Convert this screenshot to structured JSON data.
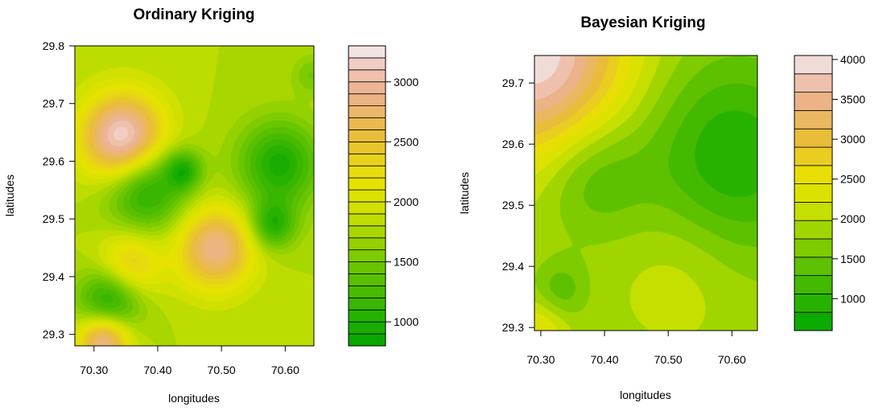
{
  "figures": [
    {
      "title": "Ordinary Kriging",
      "xlabel": "longitudes",
      "ylabel": "latitudes",
      "x_ticks": [
        "70.30",
        "70.40",
        "70.50",
        "70.60"
      ],
      "y_ticks": [
        "29.3",
        "29.4",
        "29.5",
        "29.6",
        "29.7",
        "29.8"
      ],
      "legend_ticks": [
        "1000",
        "1500",
        "2000",
        "2500",
        "3000"
      ]
    },
    {
      "title": "Bayesian Kriging",
      "xlabel": "longitudes",
      "ylabel": "latitudes",
      "x_ticks": [
        "70.30",
        "70.40",
        "70.50",
        "70.60"
      ],
      "y_ticks": [
        "29.3",
        "29.4",
        "29.5",
        "29.6",
        "29.7"
      ],
      "legend_ticks": [
        "1000",
        "1500",
        "2000",
        "2500",
        "3000",
        "3500",
        "4000"
      ]
    }
  ],
  "chart_data": [
    {
      "type": "heatmap",
      "title": "Ordinary Kriging",
      "xlabel": "longitudes",
      "ylabel": "latitudes",
      "xlim": [
        70.27,
        70.645
      ],
      "ylim": [
        29.28,
        29.8
      ],
      "x_ticks": [
        70.3,
        70.4,
        70.5,
        70.6
      ],
      "y_ticks": [
        29.3,
        29.4,
        29.5,
        29.6,
        29.7,
        29.8
      ],
      "colorbar": {
        "min": 800,
        "max": 3300,
        "levels": 25,
        "ticks": [
          1000,
          1500,
          2000,
          2500,
          3000
        ]
      },
      "base_value": 1800,
      "features": [
        {
          "x": 70.345,
          "y": 29.64,
          "value": 3300,
          "radius": 0.045
        },
        {
          "x": 70.49,
          "y": 29.45,
          "value": 2900,
          "radius": 0.042
        },
        {
          "x": 70.315,
          "y": 29.29,
          "value": 3000,
          "radius": 0.028
        },
        {
          "x": 70.355,
          "y": 29.42,
          "value": 2500,
          "radius": 0.035
        },
        {
          "x": 70.38,
          "y": 29.555,
          "value": 900,
          "radius": 0.045
        },
        {
          "x": 70.44,
          "y": 29.585,
          "value": 1100,
          "radius": 0.02
        },
        {
          "x": 70.325,
          "y": 29.36,
          "value": 900,
          "radius": 0.035
        },
        {
          "x": 70.59,
          "y": 29.595,
          "value": 950,
          "radius": 0.045
        },
        {
          "x": 70.58,
          "y": 29.49,
          "value": 1050,
          "radius": 0.025
        },
        {
          "x": 70.64,
          "y": 29.75,
          "value": 1500,
          "radius": 0.02
        }
      ]
    },
    {
      "type": "heatmap",
      "title": "Bayesian Kriging",
      "xlabel": "longitudes",
      "ylabel": "latitudes",
      "xlim": [
        70.29,
        70.64
      ],
      "ylim": [
        29.295,
        29.745
      ],
      "x_ticks": [
        70.3,
        70.4,
        70.5,
        70.6
      ],
      "y_ticks": [
        29.3,
        29.4,
        29.5,
        29.6,
        29.7
      ],
      "colorbar": {
        "min": 600,
        "max": 4050,
        "levels": 15,
        "ticks": [
          1000,
          1500,
          2000,
          2500,
          3000,
          3500,
          4000
        ]
      },
      "base_value": 1900,
      "features": [
        {
          "x": 70.29,
          "y": 29.745,
          "value": 4000,
          "radius": 0.1
        },
        {
          "x": 70.6,
          "y": 29.58,
          "value": 850,
          "radius": 0.1
        },
        {
          "x": 70.38,
          "y": 29.55,
          "value": 1250,
          "radius": 0.06
        },
        {
          "x": 70.33,
          "y": 29.36,
          "value": 1350,
          "radius": 0.03
        },
        {
          "x": 70.52,
          "y": 29.4,
          "value": 2200,
          "radius": 0.07
        },
        {
          "x": 70.3,
          "y": 29.3,
          "value": 2500,
          "radius": 0.03
        }
      ]
    }
  ]
}
